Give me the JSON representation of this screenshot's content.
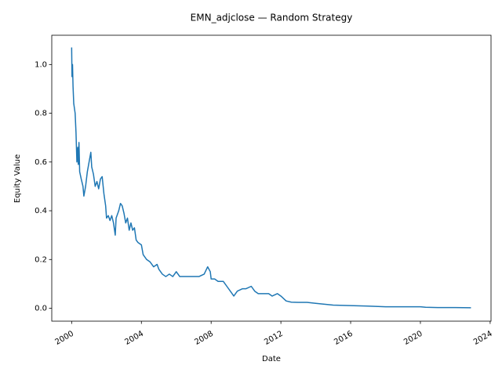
{
  "chart_data": {
    "type": "line",
    "title": "EMN_adjclose — Random Strategy",
    "x_label": "Date",
    "y_label": "Equity Value",
    "color": "#1f77b4",
    "x": [
      2000.0,
      2000.02,
      2000.05,
      2000.08,
      2000.12,
      2000.2,
      2000.25,
      2000.3,
      2000.35,
      2000.38,
      2000.42,
      2000.46,
      2000.55,
      2000.65,
      2000.7,
      2000.8,
      2000.9,
      2001.0,
      2001.1,
      2001.15,
      2001.25,
      2001.35,
      2001.45,
      2001.55,
      2001.65,
      2001.75,
      2001.85,
      2001.95,
      2002.0,
      2002.1,
      2002.2,
      2002.3,
      2002.4,
      2002.5,
      2002.55,
      2002.7,
      2002.8,
      2002.9,
      2003.0,
      2003.1,
      2003.2,
      2003.3,
      2003.4,
      2003.5,
      2003.6,
      2003.7,
      2003.8,
      2004.0,
      2004.1,
      2004.3,
      2004.5,
      2004.7,
      2004.9,
      2005.0,
      2005.2,
      2005.4,
      2005.6,
      2005.8,
      2006.0,
      2006.2,
      2006.5,
      2007.0,
      2007.3,
      2007.6,
      2007.8,
      2007.95,
      2008.0,
      2008.2,
      2008.4,
      2008.7,
      2008.9,
      2009.1,
      2009.3,
      2009.5,
      2009.8,
      2010.0,
      2010.3,
      2010.5,
      2010.7,
      2011.0,
      2011.3,
      2011.5,
      2011.8,
      2012.0,
      2012.3,
      2012.6,
      2013.0,
      2013.5,
      2014.0,
      2015.0,
      2016.0,
      2017.0,
      2018.0,
      2019.0,
      2020.0,
      2020.3,
      2021.0,
      2022.0,
      2022.9
    ],
    "values": [
      1.07,
      0.95,
      1.0,
      0.91,
      0.84,
      0.8,
      0.72,
      0.6,
      0.66,
      0.59,
      0.68,
      0.56,
      0.53,
      0.5,
      0.46,
      0.5,
      0.56,
      0.6,
      0.64,
      0.58,
      0.55,
      0.5,
      0.52,
      0.49,
      0.53,
      0.54,
      0.47,
      0.42,
      0.37,
      0.38,
      0.36,
      0.38,
      0.35,
      0.3,
      0.37,
      0.4,
      0.43,
      0.42,
      0.39,
      0.35,
      0.37,
      0.32,
      0.35,
      0.32,
      0.33,
      0.28,
      0.27,
      0.26,
      0.22,
      0.2,
      0.19,
      0.17,
      0.18,
      0.16,
      0.14,
      0.13,
      0.14,
      0.13,
      0.15,
      0.13,
      0.13,
      0.13,
      0.13,
      0.14,
      0.17,
      0.15,
      0.12,
      0.12,
      0.11,
      0.11,
      0.09,
      0.07,
      0.05,
      0.07,
      0.08,
      0.08,
      0.09,
      0.07,
      0.06,
      0.06,
      0.06,
      0.05,
      0.06,
      0.05,
      0.03,
      0.025,
      0.024,
      0.024,
      0.02,
      0.013,
      0.011,
      0.009,
      0.006,
      0.006,
      0.006,
      0.004,
      0.003,
      0.003,
      0.002
    ],
    "xlim": [
      1998.86,
      2024.05
    ],
    "xticks": [
      2000,
      2004,
      2008,
      2012,
      2016,
      2020,
      2024
    ],
    "ylim": [
      -0.053,
      1.12
    ],
    "yticks": [
      {
        "value": 0,
        "label": "0.0"
      },
      0.2,
      0.4,
      0.6,
      0.8,
      {
        "value": 1,
        "label": "1.0"
      }
    ]
  }
}
